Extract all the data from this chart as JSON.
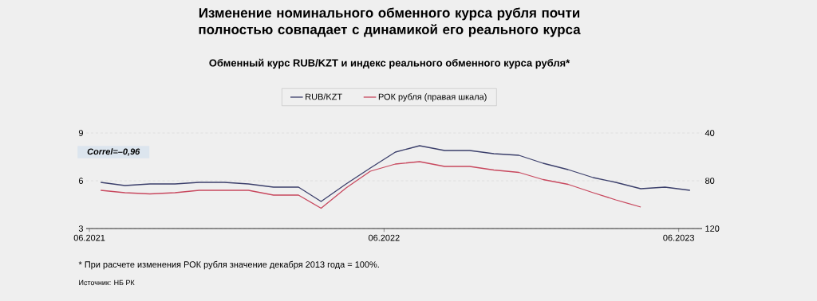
{
  "chart_data": {
    "type": "line",
    "title": "Изменение номинального обменного курса рубля почти полностью совпадает с динамикой его реального курса",
    "subtitle": "Обменный курс RUB/KZT и индекс реального обменного курса рубля*",
    "x": [
      "2021-06-15",
      "2021-07-15",
      "2021-08-15",
      "2021-09-15",
      "2021-10-15",
      "2021-11-15",
      "2021-12-15",
      "2022-01-15",
      "2022-02-15",
      "2022-03-15",
      "2022-04-15",
      "2022-05-15",
      "2022-06-15",
      "2022-07-15",
      "2022-08-15",
      "2022-09-15",
      "2022-10-15",
      "2022-11-15",
      "2022-12-15",
      "2023-01-15",
      "2023-02-15",
      "2023-03-15",
      "2023-04-15",
      "2023-05-15",
      "2023-06-15"
    ],
    "series": [
      {
        "name": "RUB/KZT",
        "color": "#3b3f6b",
        "values": [
          5.9,
          5.7,
          5.8,
          5.8,
          5.9,
          5.9,
          5.8,
          5.6,
          5.6,
          4.7,
          5.8,
          6.8,
          7.8,
          8.2,
          7.9,
          7.9,
          7.7,
          7.6,
          7.1,
          6.7,
          6.2,
          5.9,
          5.5,
          5.6,
          5.4
        ]
      },
      {
        "name": "РОК рубля (правая шкала)",
        "color": "#c8485e",
        "axis": "y2",
        "values": [
          88,
          90,
          91,
          90,
          88,
          88,
          88,
          92,
          92,
          103,
          86,
          72,
          66,
          64,
          68,
          68,
          71,
          73,
          79,
          83,
          90,
          96,
          102,
          null,
          null
        ]
      }
    ],
    "xlim": [
      "2021-05-28",
      "2023-06-30"
    ],
    "xticks": [
      {
        "value": "2021-06-01",
        "label": "06.2021"
      },
      {
        "value": "2022-06-01",
        "label": "06.2022"
      },
      {
        "value": "2023-06-01",
        "label": "06.2023"
      }
    ],
    "ylim": [
      3,
      9
    ],
    "yticks": [
      3,
      6,
      9
    ],
    "y2lim": [
      120,
      40
    ],
    "y2ticks": [
      40,
      80,
      120
    ],
    "grid": "y",
    "legend": "top",
    "annotations": [
      "Correl=–0,96",
      "* При расчете изменения РОК рубля значение декабря 2013 года = 100%.",
      "Источник: НБ РК"
    ]
  }
}
